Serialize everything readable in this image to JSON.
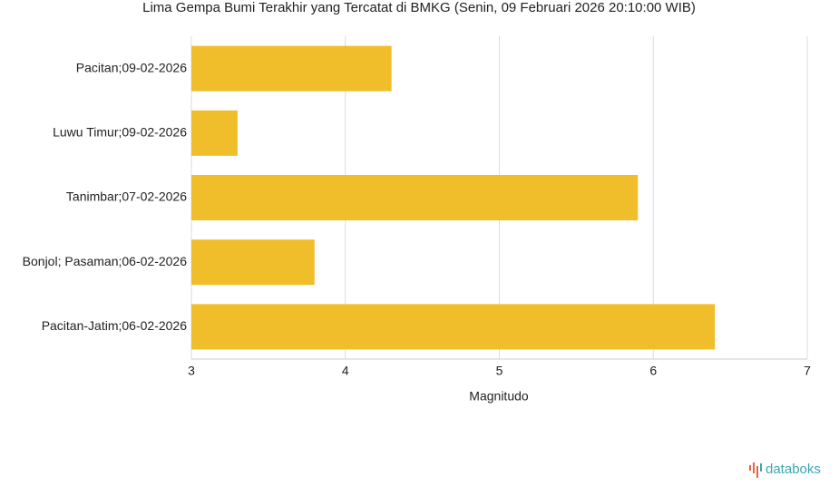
{
  "chart_data": {
    "type": "bar",
    "orientation": "horizontal",
    "title": "Lima Gempa Bumi Terakhir yang Tercatat di BMKG (Senin, 09 Februari 2026 20:10:00 WIB)",
    "categories": [
      "Pacitan;09-02-2026",
      "Luwu Timur;09-02-2026",
      "Tanimbar;07-02-2026",
      "Bonjol; Pasaman;06-02-2026",
      "Pacitan-Jatim;06-02-2026"
    ],
    "values": [
      4.3,
      3.3,
      5.9,
      3.8,
      6.4
    ],
    "color": "#f0be2a",
    "xlabel": "Magnitudo",
    "xlim": [
      3,
      7
    ],
    "xticks": [
      3,
      4,
      5,
      6,
      7
    ],
    "grid": true,
    "brand": "databoks"
  }
}
